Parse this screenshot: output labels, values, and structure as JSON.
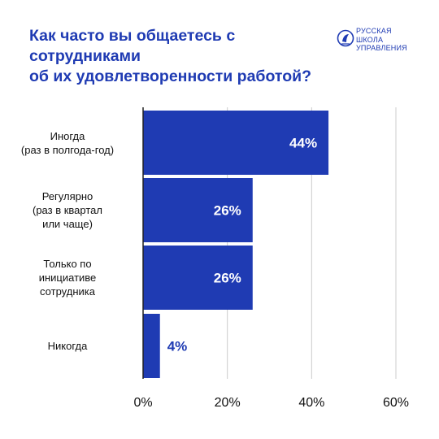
{
  "header": {
    "title_line1": "Как часто вы общаетесь с сотрудниками",
    "title_line2": "об их удовлетворенности работой?",
    "logo_lines": [
      "РУССКАЯ",
      "ШКОЛА",
      "УПРАВЛЕНИЯ"
    ]
  },
  "colors": {
    "bar": "#1f3bb3",
    "title": "#1f3bb3",
    "grid": "#cccccc",
    "axis": "#222222",
    "inside_label": "#ffffff"
  },
  "chart_data": {
    "type": "bar",
    "orientation": "horizontal",
    "categories": [
      [
        "Иногда",
        "(раз в полгода-год)"
      ],
      [
        "Регулярно",
        "(раз в квартал",
        "или чаще)"
      ],
      [
        "Только по",
        "инициативе",
        "сотрудника"
      ],
      [
        "Никогда"
      ]
    ],
    "values": [
      44,
      26,
      26,
      4
    ],
    "value_labels": [
      "44%",
      "26%",
      "26%",
      "4%"
    ],
    "xlim": [
      0,
      60
    ],
    "xticks": [
      0,
      20,
      40,
      60
    ],
    "xtick_labels": [
      "0%",
      "20%",
      "40%",
      "60%"
    ],
    "grid": true,
    "title": "Как часто вы общаетесь с сотрудниками об их удовлетворенности работой?"
  }
}
